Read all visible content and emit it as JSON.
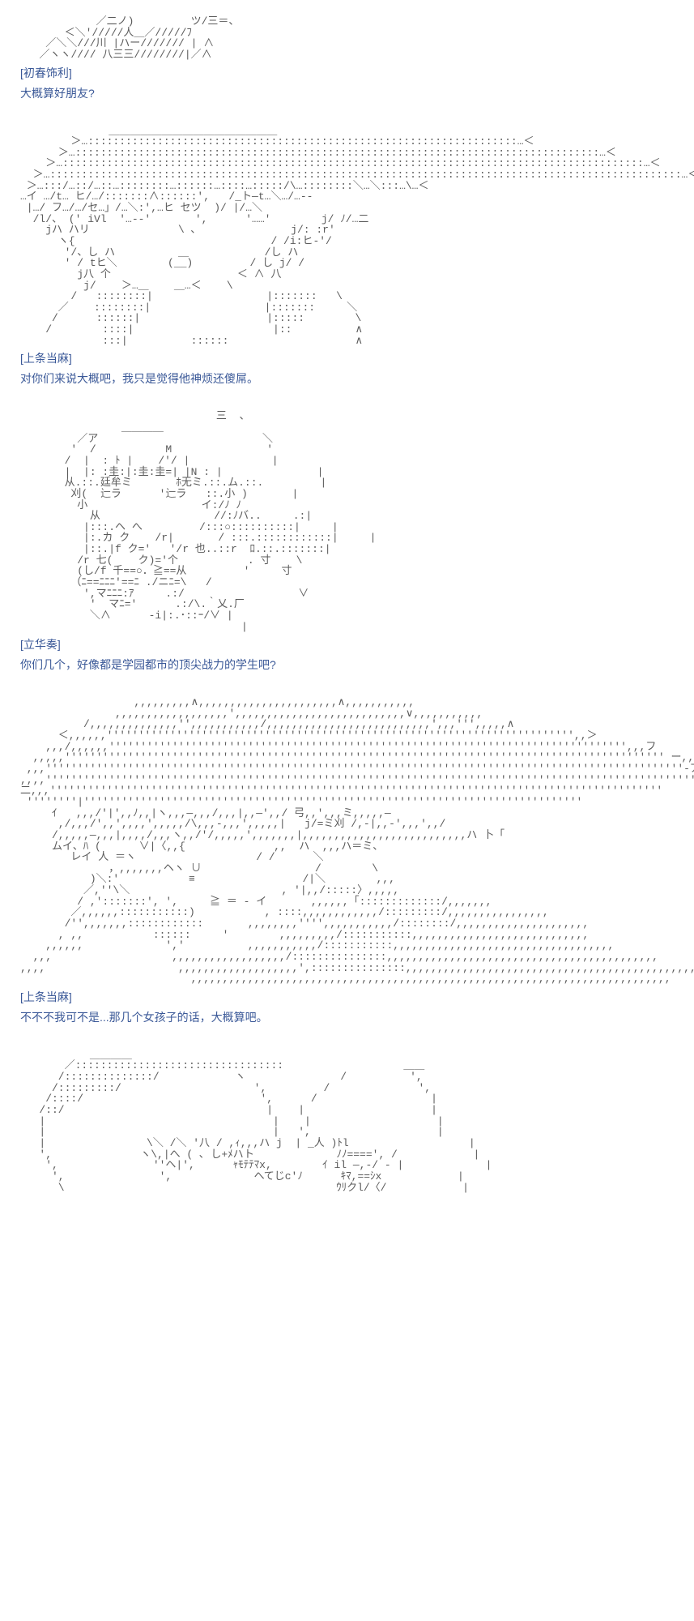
{
  "posts": [
    {
      "ascii": "            ／二ノ)         ツ/三＝、\n       ＜＼'/////人＿／/////ﾌ\n    ／＼＼///川 |ハー/////// | ∧\n   ／ヽヽ//// 八三三////////|／∧",
      "speaker": "[初春饰利]",
      "line": "大概算好朋友?"
    },
    {
      "ascii": "              ＿＿＿＿＿＿＿＿＿＿＿＿＿＿＿＿\n        ＞…::::::::::::::::::::::::::::::::::::::::::::::::::::::::::::::::::::…＜\n      ＞…:::::::::::::::::::::::::::::::::::::::::::::::::::::::::::::::::::::::::::::::::::…＜\n    ＞…::::::::::::::::::::::::::::::::::::::::::::::::::::::::::::::::::::::::::::::::::::::::::::…＜\n  ＞…::::::::::::::::::::::::::::::::::::::::::::::::::::::::::::::::::::::::::::::::::::::::::::::::::::…＜\n ＞…:::/…::/…::…::::::::…::::::…::::…:::::/\\…::::::::＼…＼:::…\\…＜\n…イ …/t… ヒ/…/:::::::∧::::::',   /_ト―t…＼…/…--\n |…/ フ…/…/セ…」/…＼:',…ヒ セツ  )/ |/…＼\n  /l/、 (' iVl  '…--'       ',      '……'        j/ ﾉ/…二\n    jハ ハリ              \\ ､               j/: :r'\n      ヽ{                               / /i:ヒ-'/\n       '/、し ハ          ＿            /し ハ\n       ' / tヒ＼        (__)         / し j/ /\n         j八 个                    ＜ ∧ 八\n          j/    ＞…＿    ＿…＜    \\\n        /   ::::::::|                  |:::::::   \\\n      ／    ::::::::|                  |:::::::     ＼\n     /      ::::::|                    |:::::        \\\n    /        ::::|                      |::          ∧\n             :::|          ::::::                    ∧",
      "speaker": "[上条当麻]",
      "line": "对你们来说大概吧，我只是觉得他神烦还傻屌。"
    },
    {
      "ascii": "                               三  、\n                ＿＿＿＿\n         ／ア                          ＼\n        '  /           M               '\n       /  |  : ﾄ |    /'/ |             |\n       |  |: :圭:|:圭:圭=| |N : |               |\n       从.::.廷牟ミ       ﾎ无ミ.::.ム.::.         |\n        刈(  辷ラ      '辷ラ   ::.小 )       |\n         小                  イ:/ﾉ ﾉ\n           从                  //:ﾉバ..     .:|\n          |:::.ヘ へ         /:::○::::::::::|     |\n          |:.カ ク    /r|       / :::.::::::::::::|     |\n          |::.|f ク='   '/r 也..::r  ﾛ.::.:::::::|\n         /r 七(    ク)='个           . 寸    \\\n         (し/f 千==○．≧==从         '     寸\n        （ﾆ==ﾆﾆﾆ'==ﾆ ./ニﾆ=\\   /\n          ',マﾆﾆﾆ:ｱ     .:/                  ∨\n           '  マﾆ='      .:/\\.｀乂.厂\n           ＼∧      -i|:.･::ｰ/∨ |\n                                   |",
      "speaker": "[立华奏]",
      "line": "你们几个，好像都是学园都市的顶尖战力的学生吧?"
    },
    {
      "ascii": "                  ,,,,,,,,,∧,,,,,,,,,,,,,,,,,,,,,,∧,,,,,,,,,,,\n               ,,,,,,,,,,,,,,,,,,',,,,,,,,,,,,,,,,,,,,,,,,,,,∨,,,,,,,,,,,\n          /,,,,,,,,,,,,,,'',,,,,,,,,,,/,,,,,,,,,,,,,,,,,,,,,,,,,,',,,''',,,,,∧\n      ＜,,,,,,'''''''''''''''''''''''''''''''''''''''''''''''''''''''''''''''''''''''''',,＞\n    ,,,/,,,,,,'''''''''''''''''''''''''''''''''''''''''''''''''''''''''''''''''''''''''''''''''',,,フ\n  ,,,,,''''''''''''''''''''''''''''''''''''''''''''''''''''''''''''''''''''''''''''''''''''''''''''''' ー,,,\n ,,,'''''''''''''''''''''''''''''''''''''''''''''''''''''''''''''''''''''''''''''''''''''''''''''''''''''-ア\n,,,,''''''''''''''''''''''''''''''''''''''''''''''''''''''''''''''''''''''''''''''''''''''''''''''''''''''''''\n二,,,'''''''''''''''''''''''''''''''''''''''''''''''''''''''''''''''''''''''''''''''''''''''''''''''''\n ''''''''|'''''''''''''''''''''''''''''''''''''''''''''''''''''''''''''''''''''''''''''''\n     ｲ   ,,,/'|',,ﾉ,,|ヽ,,,―,,,/,,,|,,―',,/ 弓,,',,,ミ,,,,,―\n      ,/,,,/',,',,,,',,,,,/\\,,,-,,,',,,,,|   j/=ミ刈 /,-|,,-',,,',,/\n     /,,,,,―,,,|,,,,/,,,ヽ,,/'/,,,,,',,,,,,,|,,,,,,,,,,,,,,,,,,,,,,,,,,ハ 卜「\n     ムイ、ﾊ (      ∨|〈,,{              ,,  ハ  ,,,ハ＝ミ、\n        レイ 人 ＝ヽ                   / /      ＼\n              ，,,,,,,,ヘヽ ∪                  /        \\\n           )＼:'           ≡                 /|＼        ,,,\n          ／,''\\＼                        , '|,,/:::::〉,,,,,\n         / ,':::::::', ',     ≧ ＝ - イ       ,,,,,,「:::::::::::::/,,,,,,,\n        ／,,,,,,:::::::::::)           , ::::,,,,,,,,,,,,/:::::::::/,,,,,,,,,,,,,,,,\n       /'',,,,,,,::::::::::::       ,,,,,,,,'''',,,,,,,,,,,/::::::::/,,,,,,,,,,,,,,,,,,,,,\n      , ,,           ::::::     '        ,,,,,,,,,/:::::::::::,,,,,,,,,,,,,,,,,,,,,,,,,,,,\n    ,,,,,,             ','          ,,,,,,,,,,,/:::::::::::,,,,,,,,,,,,,,,,,,,,,,,,,,,,,,,,,,,\n  ,,,                   ,,,,,,,,,,,,,,,,,,/:::::::::::::::,,,,,,,,,,,,,,,,,,,,,,,,,,,,,,,,,,,,,,,,,,,\n,,,,                     ,,,,,,,,,,,,,,,,,,,',:::::::::::::::,,,,,,,,,,,,,,,,,,,,,,,,,,,,,,,,,,,,,,,,,,,,,,,\n                           ,,,,,,,,,,,,,,,,,,,,,,,,,,,,,,,,,,,,,,,,,,,,,,,,,,,,,,,,,,,,,,,,,,,,,,,,,,,,",
      "speaker": "[上条当麻]",
      "line": "不不不我可不是...那几个女孩子的话，大概算吧。"
    },
    {
      "ascii": "           ＿＿＿＿\n       ／:::::::::::::::::::::::::::::::::                   ＿＿\n      /::::::::::::::/            ヽ               /          ',\n     /:::::::::/                     ',         /              ',\n    /::::/                            ',      /                  |\n   /::/                                |    |                    |\n   |                                    |    |                    |\n   |                                    |   ',                    |\n   |                \\＼ /＼ '八 / ,ｨ,,,ハ j  | _人 )ﾄl                   |\n   ',              ヽ\\,|へ ( ､ し+ﾒハト             ﾉﾉ====', /            |\n    ',               ''ヘ|',      ｬﾓﾃﾃﾏx,        ｲ il ―,-/ - |             |\n     ',               ',             へてじc'ﾉ      ｷﾏ,==ｼx            |\n      \\                                           ｳﾘクl/〈/            |",
      "speaker": "",
      "line": ""
    }
  ],
  "colors": {
    "text": "#3b5998",
    "ascii": "#5a5a5a",
    "background": "#ffffff"
  }
}
